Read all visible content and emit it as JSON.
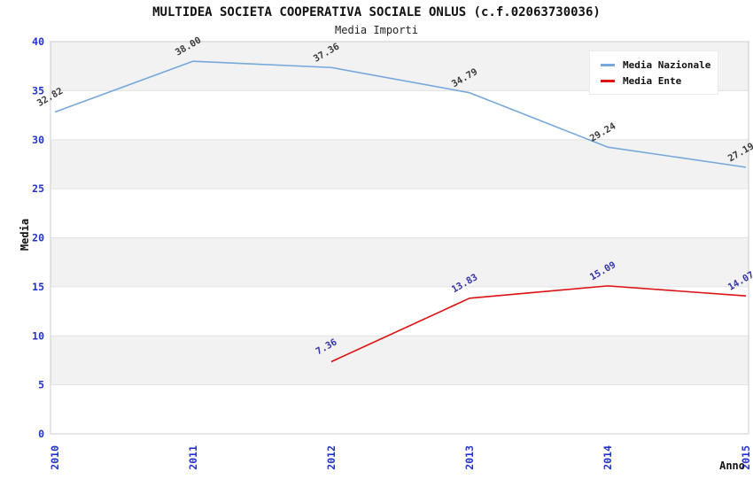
{
  "title": "MULTIDEA SOCIETA COOPERATIVA SOCIALE ONLUS (c.f.02063730036)",
  "subtitle": "Media Importi",
  "chart_data": {
    "type": "line",
    "x": [
      "2010",
      "2011",
      "2012",
      "2013",
      "2014",
      "2015"
    ],
    "xlabel": "Anno",
    "ylabel": "Media",
    "ylim": [
      0,
      40
    ],
    "y_ticks": [
      0,
      5,
      10,
      15,
      20,
      25,
      30,
      35,
      40
    ],
    "grid": "alternating-horizontal-bands",
    "legend_position": "top-right",
    "series": [
      {
        "name": "Media Nazionale",
        "color": "#76a8dc",
        "label_color": "#3a3a3a",
        "values": [
          32.82,
          38.0,
          37.36,
          34.79,
          29.24,
          27.19
        ]
      },
      {
        "name": "Media Ente",
        "color": "#dd1111",
        "label_color": "#3333aa",
        "values": [
          null,
          null,
          7.36,
          13.83,
          15.09,
          14.07
        ]
      }
    ]
  },
  "colors": {
    "tick_label": "#2233cc",
    "band_gray": "#f2f2f2",
    "band_white": "#ffffff",
    "gridline": "#e3e3e3",
    "plot_border": "#cccccc",
    "title_text": "#111111"
  }
}
